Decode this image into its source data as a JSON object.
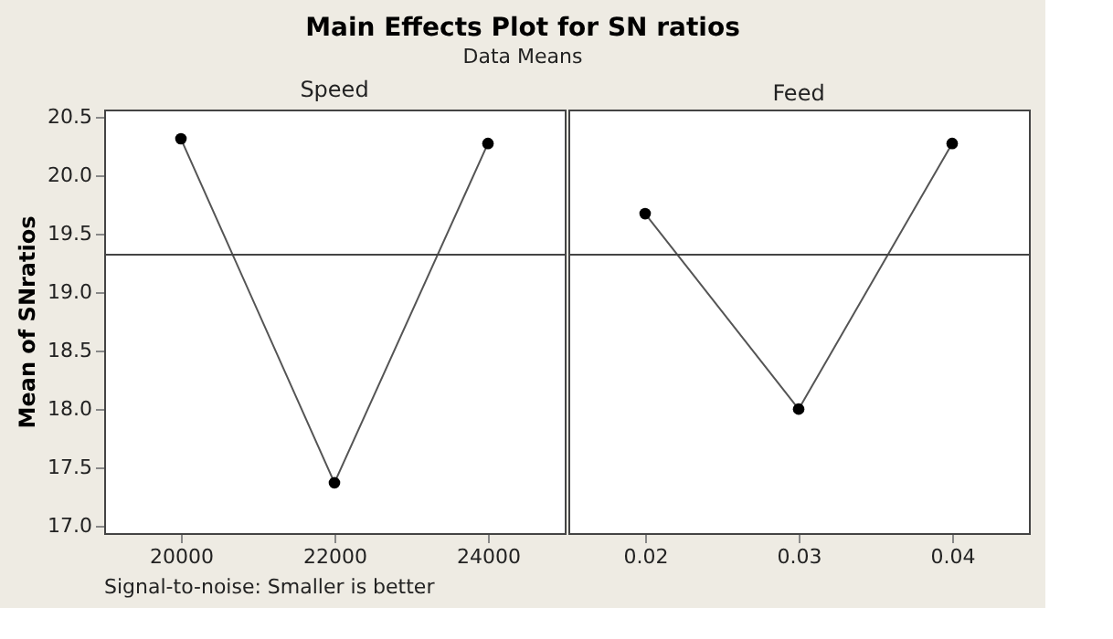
{
  "chart_data": [
    {
      "type": "line",
      "title": "Main Effects Plot for SN ratios",
      "subtitle": "Data Means",
      "xlabel": "Speed",
      "ylabel": "Mean of SNratios",
      "categories": [
        "20000",
        "22000",
        "24000"
      ],
      "values": [
        20.31,
        17.37,
        20.27
      ],
      "color": "#000000",
      "marker": "circle",
      "line_style": "solid",
      "ylim": [
        16.94,
        20.56
      ],
      "yticks": [
        {
          "value": 17,
          "label": "17.0"
        },
        17.5,
        {
          "value": 18,
          "label": "18.0"
        },
        18.5,
        {
          "value": 19,
          "label": "19.0"
        },
        19.5,
        {
          "value": 20,
          "label": "20.0"
        },
        20.5
      ],
      "ref_lines": [
        {
          "axis": "y",
          "value": 19.32
        }
      ],
      "grid": false,
      "legend": false,
      "annotations": [
        "Signal-to-noise: Smaller is better"
      ]
    },
    {
      "type": "line",
      "xlabel": "Feed",
      "categories": [
        "0.02",
        "0.03",
        "0.04"
      ],
      "values": [
        19.67,
        18.0,
        20.27
      ],
      "color": "#000000",
      "marker": "circle",
      "line_style": "solid",
      "ylim": [
        16.94,
        20.56
      ],
      "ref_lines": [
        {
          "axis": "y",
          "value": 19.32
        }
      ],
      "grid": false,
      "legend": false,
      "tick_labels": "x"
    }
  ]
}
